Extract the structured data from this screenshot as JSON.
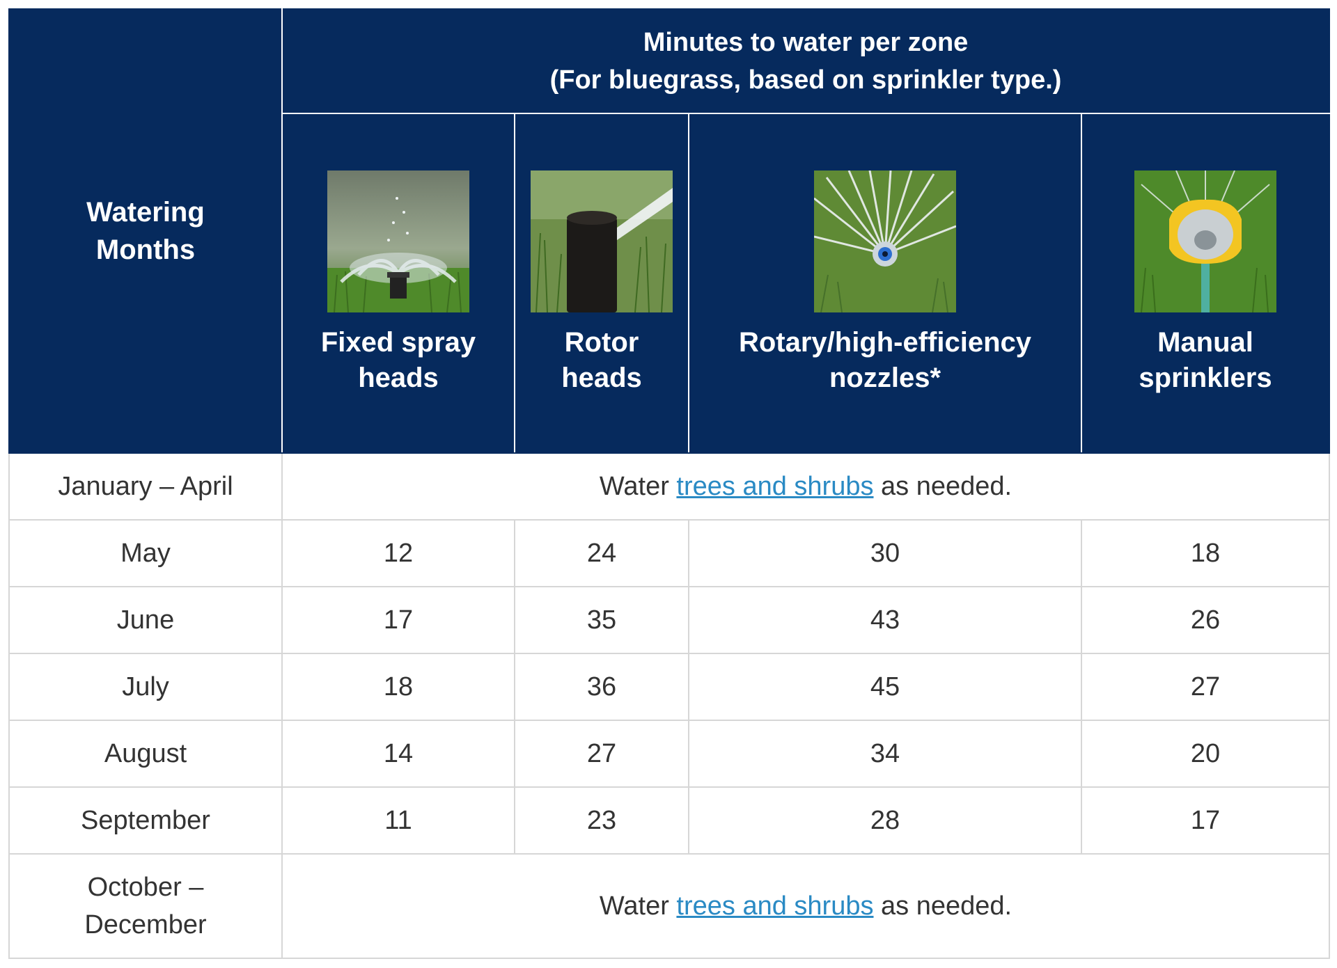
{
  "table": {
    "months_header": "Watering Months",
    "title_line1": "Minutes to water per zone",
    "title_line2": "(For bluegrass, based on sprinkler type.)",
    "columns": [
      {
        "line1": "Fixed spray",
        "line2": "heads",
        "icon": "fixed-spray-head-photo"
      },
      {
        "line1": "Rotor",
        "line2": "heads",
        "icon": "rotor-head-photo"
      },
      {
        "line1": "Rotary/high-efficiency",
        "line2": "nozzles*",
        "icon": "rotary-nozzle-photo"
      },
      {
        "line1": "Manual",
        "line2": "sprinklers",
        "icon": "manual-sprinkler-photo"
      }
    ],
    "note_prefix": "Water ",
    "note_link": "trees and shrubs",
    "note_suffix": " as needed.",
    "first_period": "January – April",
    "last_period_line1": "October –",
    "last_period_line2": "December",
    "rows": [
      {
        "month": "May",
        "values": [
          "12",
          "24",
          "30",
          "18"
        ]
      },
      {
        "month": "June",
        "values": [
          "17",
          "35",
          "43",
          "26"
        ]
      },
      {
        "month": "July",
        "values": [
          "18",
          "36",
          "45",
          "27"
        ]
      },
      {
        "month": "August",
        "values": [
          "14",
          "27",
          "34",
          "20"
        ]
      },
      {
        "month": "September",
        "values": [
          "11",
          "23",
          "28",
          "17"
        ]
      }
    ]
  },
  "colors": {
    "header_bg": "#062a5d",
    "link": "#2a8ac4",
    "border": "#d6d6d6"
  }
}
